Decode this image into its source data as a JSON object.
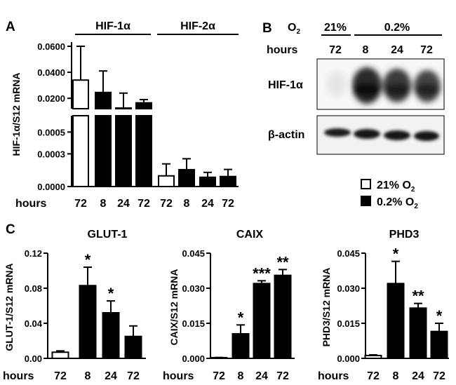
{
  "panel_labels": {
    "a": "A",
    "b": "B",
    "c": "C"
  },
  "legend": {
    "normoxia_prefix": "21% O",
    "normoxia_sub": "2",
    "hypoxia_prefix": "0.2% O",
    "hypoxia_sub": "2"
  },
  "blot": {
    "o2_label": "O",
    "o2_sub": "2",
    "cond_21": "21%",
    "cond_02": "0.2%",
    "hours_label": "hours",
    "hours": [
      "72",
      "8",
      "24",
      "72"
    ],
    "band1_label": "HIF-1α",
    "band2_label": "β-actin"
  },
  "chart_data": [
    {
      "type": "bar",
      "id": "A",
      "ylabel": "HIF-1α/S12 mRNA",
      "xlabel": "hours",
      "categories": [
        "72",
        "8",
        "24",
        "72",
        "72",
        "8",
        "24",
        "72"
      ],
      "groups": [
        {
          "name": "HIF-1α",
          "indices": [
            0,
            1,
            2,
            3
          ]
        },
        {
          "name": "HIF-2α",
          "indices": [
            4,
            5,
            6,
            7
          ]
        }
      ],
      "condition": [
        "21% O2",
        "0.2% O2",
        "0.2% O2",
        "0.2% O2",
        "21% O2",
        "0.2% O2",
        "0.2% O2",
        "0.2% O2"
      ],
      "values": [
        0.034,
        0.0245,
        0.0125,
        0.0165,
        9.8e-05,
        0.000155,
        8.5e-05,
        9.2e-05
      ],
      "errors": [
        0.026,
        0.0165,
        0.0115,
        0.0025,
        0.00011,
        0.0001,
        4.5e-05,
        6.5e-05
      ],
      "axis_break": true,
      "upper_ylim": [
        0.012,
        0.06
      ],
      "upper_ticks": [
        "0.0600",
        "0.0400",
        "0.0200"
      ],
      "upper_tick_values": [
        0.06,
        0.04,
        0.02
      ],
      "lower_ylim": [
        0,
        0.00065
      ],
      "lower_ticks": [
        "0.0005",
        "0.0003",
        "0.0000"
      ],
      "lower_tick_values": [
        0.0005,
        0.0003,
        0.0
      ]
    },
    {
      "type": "bar",
      "id": "C1",
      "title": "GLUT-1",
      "ylabel": "GLUT-1/S12 mRNA",
      "xlabel": "hours",
      "categories": [
        "72",
        "8",
        "24",
        "72"
      ],
      "condition": [
        "21% O2",
        "0.2% O2",
        "0.2% O2",
        "0.2% O2"
      ],
      "values": [
        0.007,
        0.083,
        0.052,
        0.025
      ],
      "errors": [
        0.0015,
        0.021,
        0.0135,
        0.012
      ],
      "significance": [
        "",
        "*",
        "*",
        ""
      ],
      "ylim": [
        0,
        0.12
      ],
      "yticks": [
        "0.00",
        "0.04",
        "0.08",
        "0.12"
      ],
      "ytick_values": [
        0,
        0.04,
        0.08,
        0.12
      ]
    },
    {
      "type": "bar",
      "id": "C2",
      "title": "CAIX",
      "ylabel": "CAIX/S12 mRNA",
      "xlabel": "hours",
      "categories": [
        "72",
        "8",
        "24",
        "72"
      ],
      "condition": [
        "21% O2",
        "0.2% O2",
        "0.2% O2",
        "0.2% O2"
      ],
      "values": [
        0.0003,
        0.0105,
        0.032,
        0.0355
      ],
      "errors": [
        0.0001,
        0.0038,
        0.0012,
        0.0025
      ],
      "significance": [
        "",
        "*",
        "***",
        "**"
      ],
      "ylim": [
        0,
        0.045
      ],
      "yticks": [
        "0.000",
        "0.015",
        "0.030",
        "0.045"
      ],
      "ytick_values": [
        0,
        0.015,
        0.03,
        0.045
      ]
    },
    {
      "type": "bar",
      "id": "C3",
      "title": "PHD3",
      "ylabel": "PHD3/S12 mRNA",
      "xlabel": "hours",
      "categories": [
        "72",
        "8",
        "24",
        "72"
      ],
      "condition": [
        "21% O2",
        "0.2% O2",
        "0.2% O2",
        "0.2% O2"
      ],
      "values": [
        0.0012,
        0.032,
        0.0215,
        0.0115
      ],
      "errors": [
        0.0003,
        0.0095,
        0.002,
        0.0035
      ],
      "significance": [
        "",
        "*",
        "**",
        "*"
      ],
      "ylim": [
        0,
        0.045
      ],
      "yticks": [
        "0.000",
        "0.015",
        "0.030",
        "0.045"
      ],
      "ytick_values": [
        0,
        0.015,
        0.03,
        0.045
      ]
    }
  ]
}
